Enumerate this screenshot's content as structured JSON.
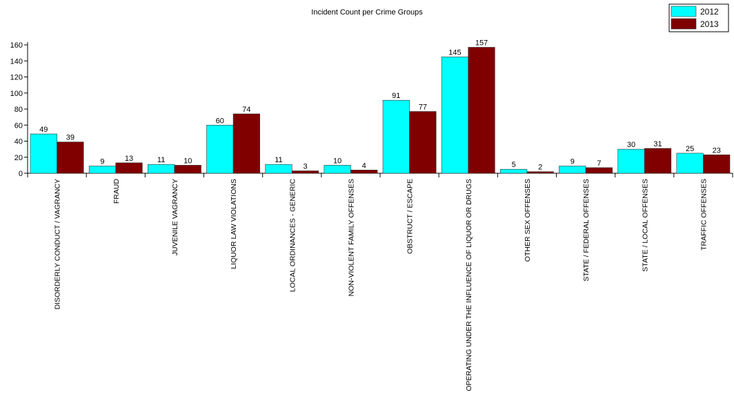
{
  "chart_data": {
    "type": "bar",
    "title": "Incident Count per Crime Groups",
    "xlabel": "",
    "ylabel": "",
    "ylim": [
      0,
      160
    ],
    "yticks": [
      0,
      20,
      40,
      60,
      80,
      100,
      120,
      140,
      160
    ],
    "grid": false,
    "legend_position": "top-right",
    "categories": [
      "DISORDERLY CONDUCT / VAGRANCY",
      "FRAUD",
      "JUVENILE VAGRANCY",
      "LIQUOR LAW VIOLATIONS",
      "LOCAL ORDINANCES - GENERIC",
      "NON-VIOLENT FAMILY OFFENSES",
      "OBSTRUCT / ESCAPE",
      "OPERATING UNDER THE INFLUENCE OF LIQUOR OR DRUGS",
      "OTHER SEX OFFENSES",
      "STATE / FEDERAL OFFENSES",
      "STATE / LOCAL OFFENSES",
      "TRAFFIC OFFENSES"
    ],
    "series": [
      {
        "name": "2012",
        "color": "#00FFFF",
        "values": [
          49,
          9,
          11,
          60,
          11,
          10,
          91,
          145,
          5,
          9,
          30,
          25
        ]
      },
      {
        "name": "2013",
        "color": "#800000",
        "values": [
          39,
          13,
          10,
          74,
          3,
          4,
          77,
          157,
          2,
          7,
          31,
          23
        ]
      }
    ]
  }
}
